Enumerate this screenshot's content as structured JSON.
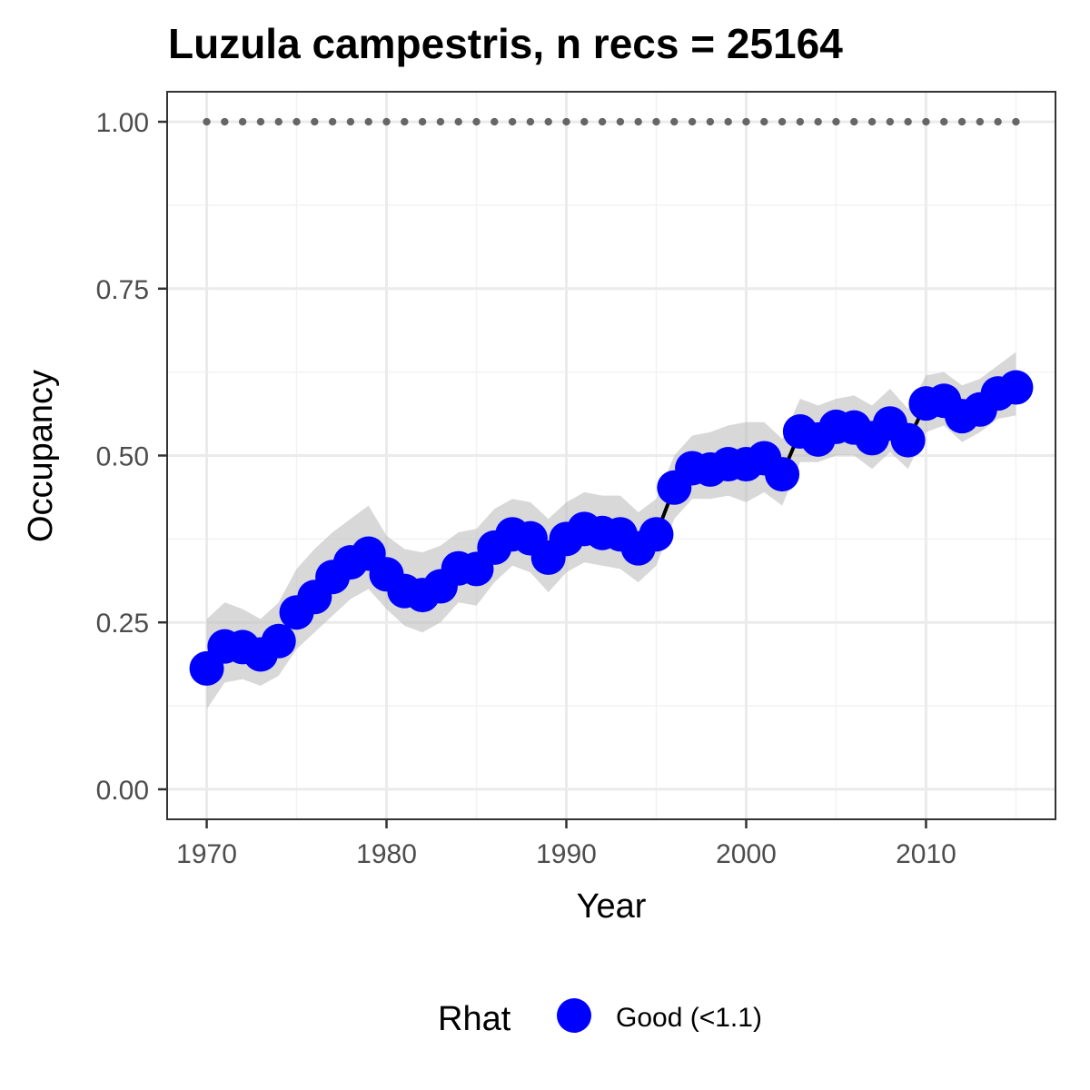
{
  "chart_data": {
    "type": "line",
    "title": "Luzula campestris, n recs = 25164",
    "xlabel": "Year",
    "ylabel": "Occupancy",
    "xlim": [
      1967.8,
      2017.2
    ],
    "ylim": [
      -0.045,
      1.045
    ],
    "x_ticks": [
      1970,
      1980,
      1990,
      2000,
      2010
    ],
    "y_ticks": [
      0.0,
      0.25,
      0.5,
      0.75,
      1.0
    ],
    "x_tick_labels": [
      "1970",
      "1980",
      "1990",
      "2000",
      "2010"
    ],
    "y_tick_labels": [
      "0.00",
      "0.25",
      "0.50",
      "0.75",
      "1.00"
    ],
    "grid": true,
    "x": [
      1970,
      1971,
      1972,
      1973,
      1974,
      1975,
      1976,
      1977,
      1978,
      1979,
      1980,
      1981,
      1982,
      1983,
      1984,
      1985,
      1986,
      1987,
      1988,
      1989,
      1990,
      1991,
      1992,
      1993,
      1994,
      1995,
      1996,
      1997,
      1998,
      1999,
      2000,
      2001,
      2002,
      2003,
      2004,
      2005,
      2006,
      2007,
      2008,
      2009,
      2010,
      2011,
      2012,
      2013,
      2014,
      2015
    ],
    "series": [
      {
        "values": [
          0.181,
          0.214,
          0.213,
          0.202,
          0.222,
          0.265,
          0.288,
          0.318,
          0.34,
          0.353,
          0.322,
          0.297,
          0.291,
          0.304,
          0.331,
          0.33,
          0.362,
          0.382,
          0.376,
          0.347,
          0.375,
          0.39,
          0.384,
          0.382,
          0.361,
          0.382,
          0.452,
          0.481,
          0.479,
          0.487,
          0.487,
          0.496,
          0.472,
          0.536,
          0.524,
          0.543,
          0.542,
          0.526,
          0.548,
          0.523,
          0.578,
          0.582,
          0.559,
          0.569,
          0.593,
          0.602
        ],
        "lower": [
          0.12,
          0.16,
          0.165,
          0.155,
          0.17,
          0.21,
          0.235,
          0.26,
          0.285,
          0.3,
          0.27,
          0.245,
          0.235,
          0.25,
          0.28,
          0.275,
          0.31,
          0.335,
          0.325,
          0.295,
          0.325,
          0.34,
          0.335,
          0.33,
          0.31,
          0.335,
          0.405,
          0.435,
          0.435,
          0.44,
          0.43,
          0.445,
          0.425,
          0.49,
          0.49,
          0.5,
          0.5,
          0.48,
          0.505,
          0.48,
          0.535,
          0.545,
          0.52,
          0.535,
          0.555,
          0.56
        ],
        "upper": [
          0.255,
          0.28,
          0.27,
          0.255,
          0.28,
          0.33,
          0.36,
          0.385,
          0.405,
          0.425,
          0.38,
          0.36,
          0.355,
          0.365,
          0.385,
          0.39,
          0.42,
          0.435,
          0.43,
          0.405,
          0.43,
          0.445,
          0.44,
          0.44,
          0.415,
          0.435,
          0.5,
          0.53,
          0.535,
          0.545,
          0.55,
          0.55,
          0.525,
          0.585,
          0.575,
          0.585,
          0.59,
          0.575,
          0.6,
          0.57,
          0.62,
          0.625,
          0.605,
          0.615,
          0.635,
          0.655
        ],
        "color": "#0000ff",
        "line_color": "#000000",
        "ribbon_color": "#bebebe"
      }
    ],
    "reference_line": {
      "y": 1.0,
      "color": "#666666",
      "style": "dotted"
    },
    "legend": {
      "position": "bottom",
      "title": "Rhat",
      "entries": [
        {
          "label": "Good (<1.1)",
          "color": "#0000ff"
        }
      ]
    }
  }
}
